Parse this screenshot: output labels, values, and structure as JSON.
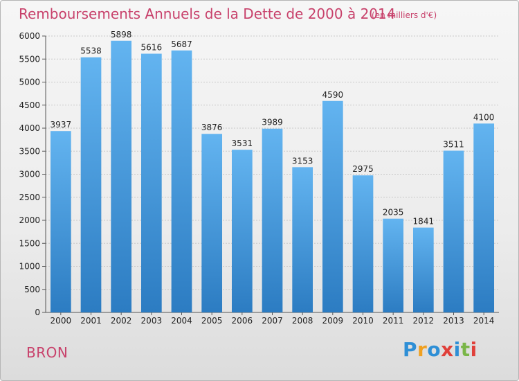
{
  "chart_data": {
    "type": "bar",
    "title": "Remboursements Annuels de la Dette de 2000 à 2014",
    "subtitle": "(en milliers d'€)",
    "categories": [
      "2000",
      "2001",
      "2002",
      "2003",
      "2004",
      "2005",
      "2006",
      "2007",
      "2008",
      "2009",
      "2010",
      "2011",
      "2012",
      "2013",
      "2014"
    ],
    "values": [
      3937,
      5538,
      5898,
      5616,
      5687,
      3876,
      3531,
      3989,
      3153,
      4590,
      2975,
      2035,
      1841,
      3511,
      4100
    ],
    "ylim": [
      0,
      6000
    ],
    "yticks": [
      0,
      500,
      1000,
      1500,
      2000,
      2500,
      3000,
      3500,
      4000,
      4500,
      5000,
      5500,
      6000
    ],
    "grid": true,
    "bar_color": "#5aaae8",
    "bar_color_dark": "#2e7fc4"
  },
  "place": "BRON",
  "logo": {
    "text": "Proxiti",
    "letters": [
      "P",
      "r",
      "o",
      "x",
      "i",
      "t",
      "i"
    ]
  },
  "colors": {
    "title": "#c8416b"
  }
}
